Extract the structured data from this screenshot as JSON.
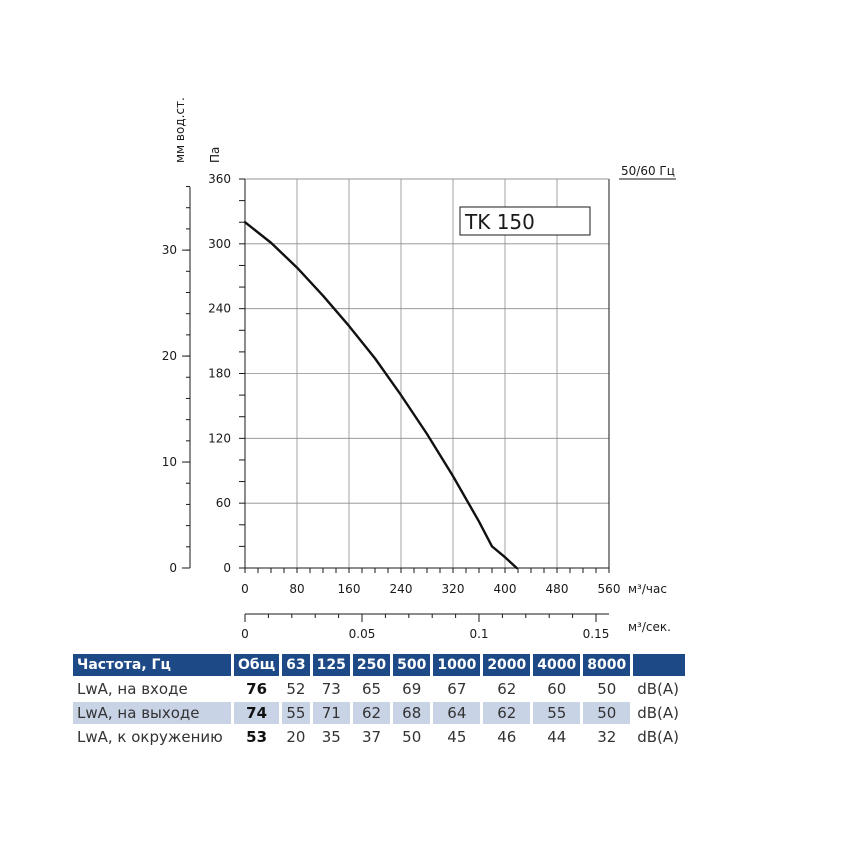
{
  "chart_data": {
    "type": "line",
    "model_label": "TK 150",
    "frequency_label": "50/60 Гц",
    "y_unit_pa": "Па",
    "y_unit_mm": "мм вод.ст.",
    "x_unit_hour": "м³/час",
    "x_unit_sec": "м³/сек.",
    "x_ticks": [
      "0",
      "80",
      "160",
      "240",
      "320",
      "400",
      "480",
      "560"
    ],
    "y_ticks": [
      "0",
      "60",
      "120",
      "180",
      "240",
      "300",
      "360"
    ],
    "y2_ticks": [
      "0",
      "10",
      "20",
      "30"
    ],
    "x2_ticks": [
      "0",
      "0.05",
      "0.1",
      "0.15"
    ],
    "xlim": [
      0,
      560
    ],
    "ylim": [
      0,
      360
    ],
    "grid": true,
    "series": [
      {
        "x": [
          0,
          40,
          80,
          120,
          160,
          200,
          240,
          280,
          320,
          360,
          380,
          400,
          418
        ],
        "y": [
          320,
          301,
          278,
          252,
          224,
          194,
          160,
          124,
          85,
          43,
          20,
          10,
          0
        ]
      }
    ]
  },
  "table": {
    "headers": [
      "Частота, Гц",
      "Общ",
      "63",
      "125",
      "250",
      "500",
      "1000",
      "2000",
      "4000",
      "8000",
      ""
    ],
    "rows": [
      {
        "label": "LwA, на входе",
        "total": "76",
        "values": [
          "52",
          "73",
          "65",
          "69",
          "67",
          "62",
          "60",
          "50"
        ],
        "unit": "dB(A)"
      },
      {
        "label": "LwA, на выходе",
        "total": "74",
        "values": [
          "55",
          "71",
          "62",
          "68",
          "64",
          "62",
          "55",
          "50"
        ],
        "unit": "dB(A)"
      },
      {
        "label": "LwA, к окружению",
        "total": "53",
        "values": [
          "20",
          "35",
          "37",
          "50",
          "45",
          "46",
          "44",
          "32"
        ],
        "unit": "dB(A)"
      }
    ]
  }
}
